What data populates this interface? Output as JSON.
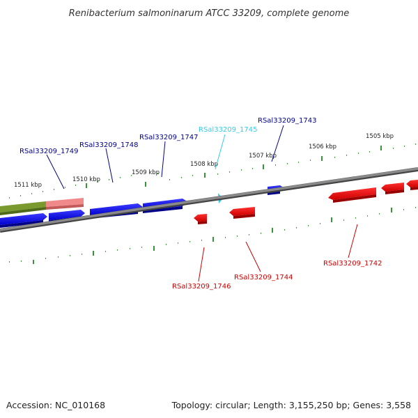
{
  "title": "Renibacterium salmoninarum ATCC 33209, complete genome",
  "footer": {
    "accession": "Accession: NC_010168",
    "summary": "Topology: circular; Length: 3,155,250 bp; Genes: 3,558"
  },
  "scale_labels": [
    "1511 kbp",
    "1510 kbp",
    "1509 kbp",
    "1508 kbp",
    "1507 kbp",
    "1506 kbp",
    "1505 kbp"
  ],
  "genes_forward": [
    {
      "name": "RSal33209_1749",
      "color": "#00008b"
    },
    {
      "name": "RSal33209_1748",
      "color": "#00008b"
    },
    {
      "name": "RSal33209_1747",
      "color": "#00008b"
    },
    {
      "name": "RSal33209_1745",
      "color": "#33ccee"
    },
    {
      "name": "RSal33209_1743",
      "color": "#00008b"
    }
  ],
  "genes_reverse": [
    {
      "name": "RSal33209_1746",
      "color": "#cc0000"
    },
    {
      "name": "RSal33209_1744",
      "color": "#cc0000"
    },
    {
      "name": "RSal33209_1742",
      "color": "#cc0000"
    }
  ],
  "colors": {
    "forward_gene": "#0000ee",
    "reverse_gene": "#ee0000",
    "rrna": "#6b8e23",
    "trna": "#e77f7f",
    "backbone": "#777777",
    "ticks": "#228b22"
  }
}
